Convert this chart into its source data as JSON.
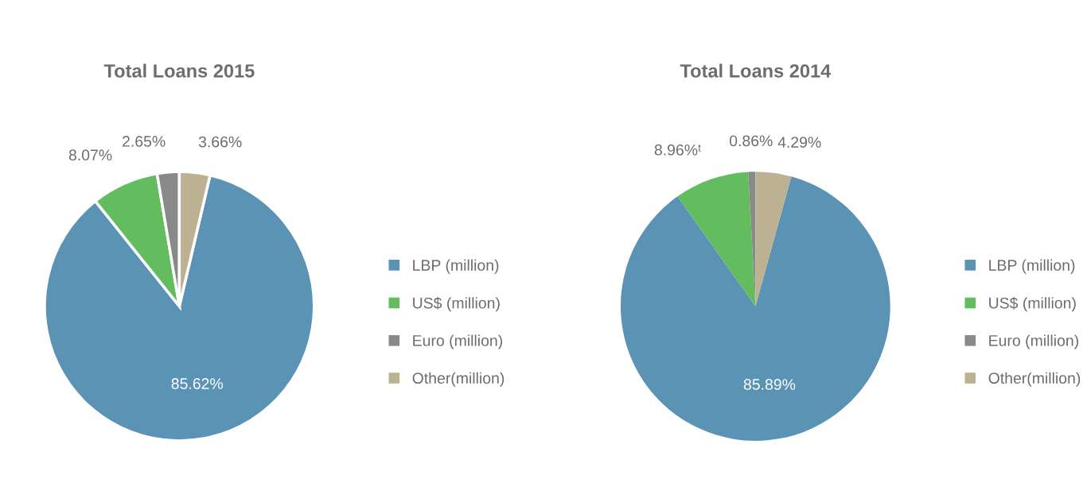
{
  "chart_data": [
    {
      "type": "pie",
      "title": "Total Loans 2015",
      "categories": [
        "LBP (million)",
        "US$ (million)",
        "Euro (million)",
        "Other(million)"
      ],
      "values": [
        85.62,
        8.07,
        2.65,
        3.66
      ],
      "colors": [
        "#5b93b5",
        "#63bd5f",
        "#898989",
        "#bcb291"
      ],
      "value_labels": [
        "85.62%",
        "8.07%",
        "2.65%",
        "3.66%"
      ],
      "legend": "right"
    },
    {
      "type": "pie",
      "title": "Total Loans 2014",
      "categories": [
        "LBP (million)",
        "US$ (million)",
        "Euro (million)",
        "Other(million)"
      ],
      "values": [
        85.89,
        8.96,
        0.86,
        4.29
      ],
      "colors": [
        "#5b93b5",
        "#63bd5f",
        "#898989",
        "#bcb291"
      ],
      "value_labels": [
        "85.89%",
        "8.96%ᵗ",
        "0.86%",
        "4.29%"
      ],
      "legend": "right"
    }
  ]
}
